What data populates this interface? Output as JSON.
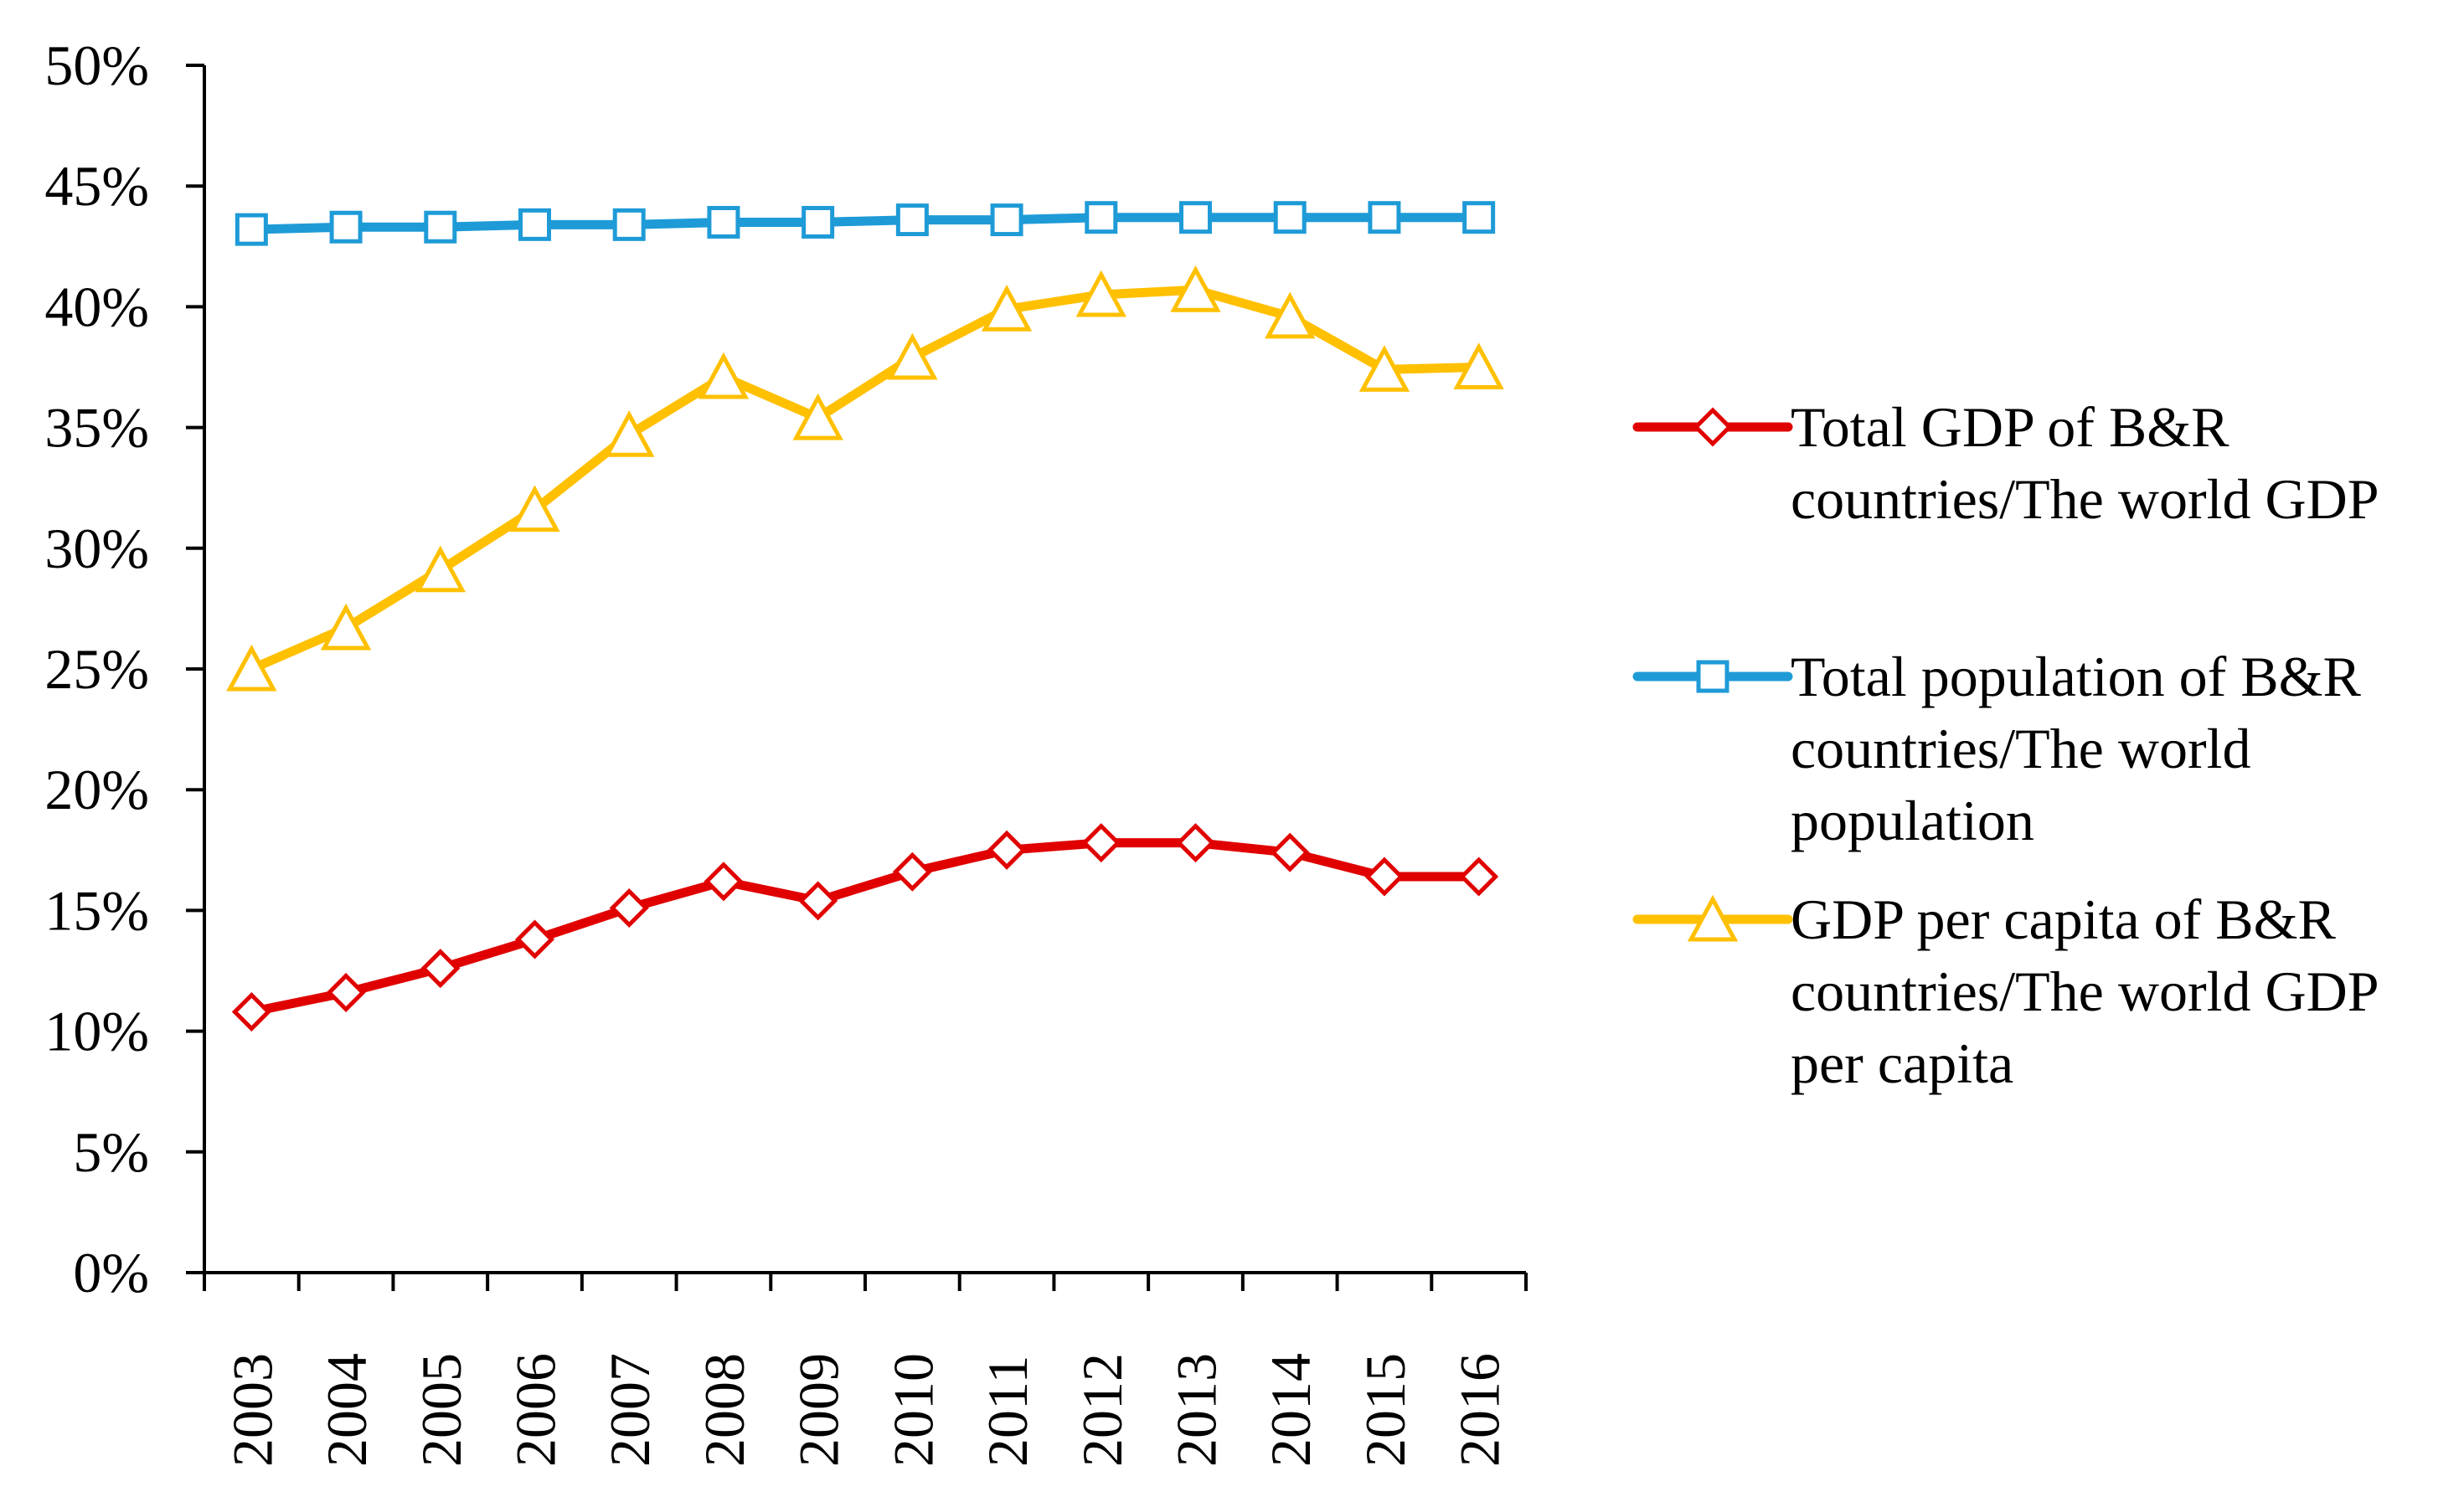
{
  "chart_data": {
    "type": "line",
    "title": "",
    "xlabel": "",
    "ylabel": "",
    "ylim": [
      0,
      50
    ],
    "y_ticks": [
      "0%",
      "5%",
      "10%",
      "15%",
      "20%",
      "25%",
      "30%",
      "35%",
      "40%",
      "45%",
      "50%"
    ],
    "categories": [
      "2003",
      "2004",
      "2005",
      "2006",
      "2007",
      "2008",
      "2009",
      "2010",
      "2011",
      "2012",
      "2013",
      "2014",
      "2015",
      "2016"
    ],
    "grid": false,
    "legend_position": "right",
    "series": [
      {
        "name": "Total GDP of B&R countries/The world GDP",
        "legend_lines": [
          "Total GDP of B&R",
          "countries/The world GDP"
        ],
        "color": "#e00000",
        "marker": "diamond",
        "values": [
          10.8,
          11.6,
          12.6,
          13.8,
          15.1,
          16.2,
          15.4,
          16.6,
          17.5,
          17.8,
          17.8,
          17.4,
          16.4,
          16.4
        ]
      },
      {
        "name": "Total population of B&R countries/The world population",
        "legend_lines": [
          "Total population of B&R",
          "countries/The world",
          "population"
        ],
        "color": "#1e9bd7",
        "marker": "square",
        "values": [
          43.2,
          43.3,
          43.3,
          43.4,
          43.4,
          43.5,
          43.5,
          43.6,
          43.6,
          43.7,
          43.7,
          43.7,
          43.7,
          43.7
        ]
      },
      {
        "name": "GDP per capita of B&R countries/The world GDP per capita",
        "legend_lines": [
          "GDP per capita of B&R",
          "countries/The world GDP",
          "per capita"
        ],
        "color": "#ffc000",
        "marker": "triangle",
        "values": [
          25.0,
          26.7,
          29.1,
          31.6,
          34.7,
          37.1,
          35.4,
          37.9,
          39.9,
          40.5,
          40.7,
          39.6,
          37.4,
          37.5
        ]
      }
    ]
  }
}
